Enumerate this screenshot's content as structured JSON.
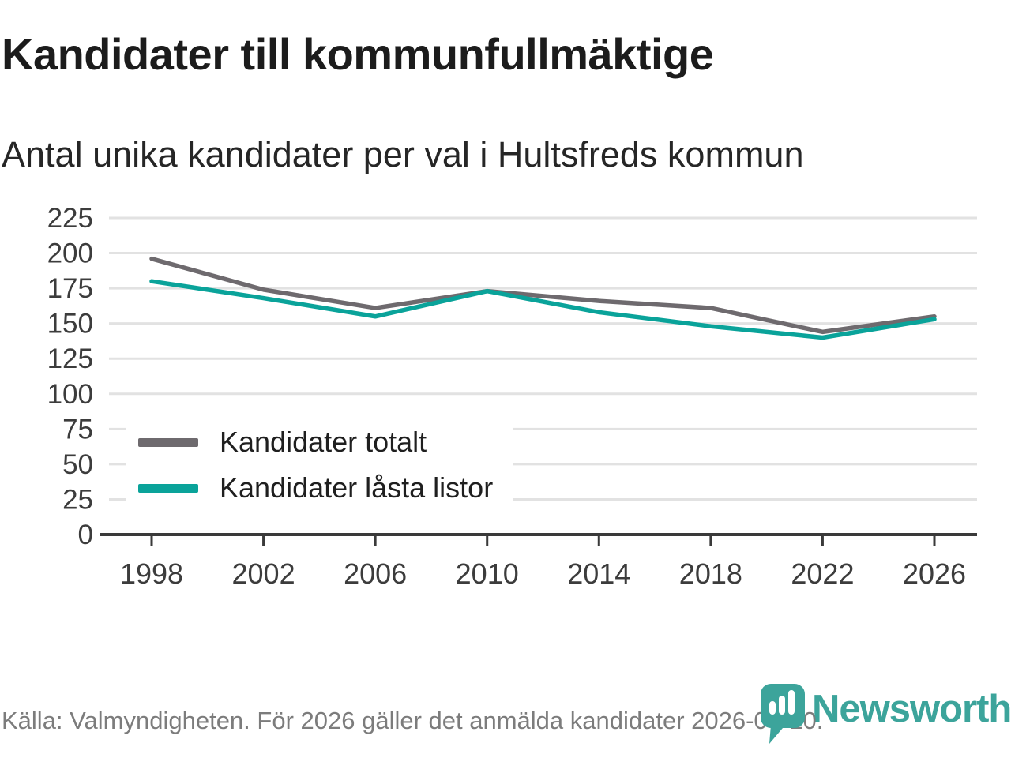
{
  "chart_data": {
    "type": "line",
    "title": "Kandidater till kommunfullmäktige",
    "subtitle": "Antal unika kandidater per val i Hultsfreds kommun",
    "x": [
      1998,
      2002,
      2006,
      2010,
      2014,
      2018,
      2022,
      2026
    ],
    "series": [
      {
        "name": "Kandidater totalt",
        "color": "#6e6a6e",
        "values": [
          196,
          174,
          161,
          173,
          166,
          161,
          144,
          155
        ]
      },
      {
        "name": "Kandidater låsta listor",
        "color": "#0aa39a",
        "values": [
          180,
          168,
          155,
          173,
          158,
          148,
          140,
          153
        ]
      }
    ],
    "xlabel": "",
    "ylabel": "",
    "ylim": [
      0,
      225
    ],
    "ytick_step": 25,
    "grid": "horizontal",
    "legend_position": "inside lower-left"
  },
  "footer": {
    "source_text": "Källa: Valmyndigheten. För 2026 gäller det anmälda kandidater 2026-04-10.",
    "brand": "Newsworthy"
  },
  "colors": {
    "background": "#ffffff",
    "gridline": "#e2e2e2",
    "axis": "#3a3a3a",
    "tick_label": "#3c3c3c",
    "title_text": "#1c1c1c",
    "subtitle_text": "#262626",
    "footer_text": "#7c7c7c",
    "brand_teal": "#3ca49b",
    "series_total": "#6e6a6e",
    "series_locked": "#0aa39a"
  }
}
